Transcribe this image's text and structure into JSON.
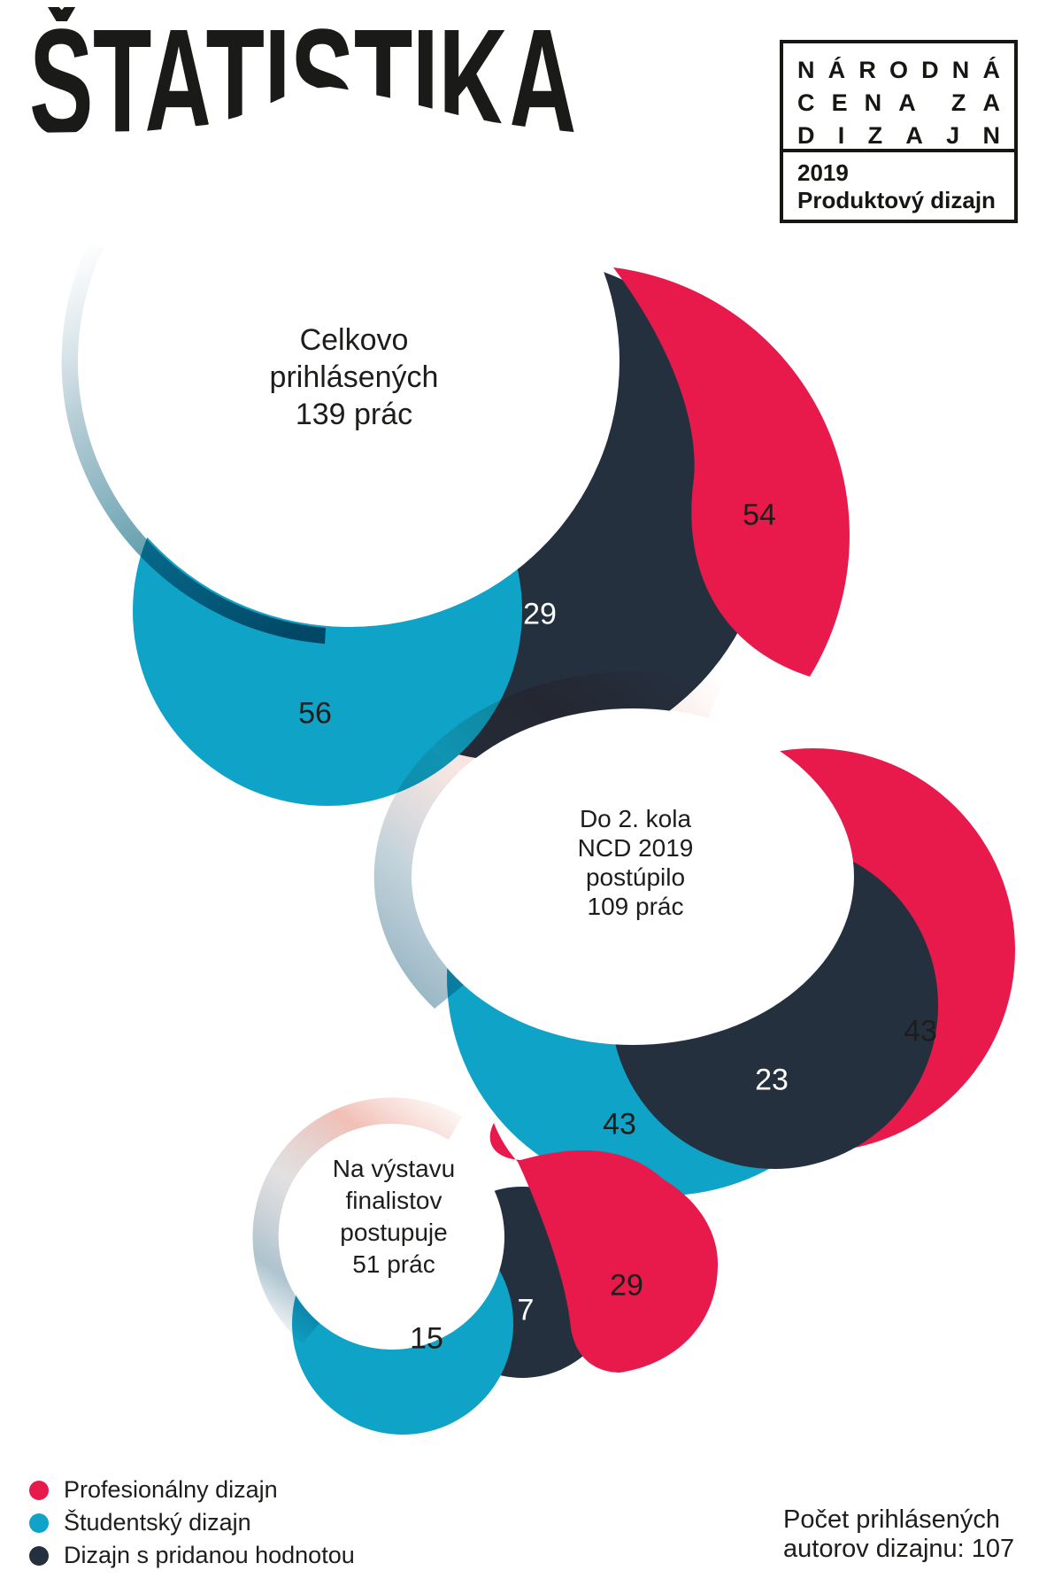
{
  "title": "ŠTATISTIKA",
  "logo": {
    "row1": "NÁRODNÁ",
    "row2": "CENA ZA",
    "row3": "DIZAJN",
    "year": "2019",
    "category": "Produktový dizajn"
  },
  "palette": {
    "red": "#E8194B",
    "teal": "#0FA3C7",
    "navy": "#25303F",
    "ink": "#1D1D1B",
    "trail_teal": "#0A6F82",
    "trail_pink": "#F2C4BA",
    "trail_gray": "#9FB9C6"
  },
  "chart_data": {
    "type": "bubble",
    "title": "ŠTATISTIKA",
    "legend_position": "bottom-left",
    "stages": [
      {
        "label": "Celkovo prihlásených 139 prác",
        "label_lines": [
          "Celkovo",
          "prihlásených",
          "139 prác"
        ],
        "total": 139,
        "series": [
          {
            "name": "Profesionálny dizajn",
            "value": 54,
            "color": "#E8194B"
          },
          {
            "name": "Dizajn s pridanou hodnotou",
            "value": 29,
            "color": "#25303F"
          },
          {
            "name": "Študentský dizajn",
            "value": 56,
            "color": "#0FA3C7"
          }
        ]
      },
      {
        "label": "Do 2. kola NCD 2019 postúpilo 109 prác",
        "label_lines": [
          "Do 2. kola",
          "NCD 2019",
          "postúpilo",
          "109 prác"
        ],
        "total": 109,
        "series": [
          {
            "name": "Profesionálny dizajn",
            "value": 43,
            "color": "#E8194B"
          },
          {
            "name": "Dizajn s pridanou hodnotou",
            "value": 23,
            "color": "#25303F"
          },
          {
            "name": "Študentský dizajn",
            "value": 43,
            "color": "#0FA3C7"
          }
        ]
      },
      {
        "label": "Na výstavu finalistov postupuje 51 prác",
        "label_lines": [
          "Na výstavu",
          "finalistov",
          "postupuje",
          "51 prác"
        ],
        "total": 51,
        "series": [
          {
            "name": "Profesionálny dizajn",
            "value": 29,
            "color": "#E8194B"
          },
          {
            "name": "Dizajn s pridanou hodnotou",
            "value": 7,
            "color": "#25303F"
          },
          {
            "name": "Študentský dizajn",
            "value": 15,
            "color": "#0FA3C7"
          }
        ]
      }
    ],
    "annotation": "Počet prihlásených autorov dizajnu: 107"
  },
  "legend": {
    "items": [
      {
        "label": "Profesionálny dizajn",
        "color": "#E8194B"
      },
      {
        "label": "Študentský dizajn",
        "color": "#0FA3C7"
      },
      {
        "label": "Dizajn s pridanou hodnotou",
        "color": "#25303F"
      }
    ]
  },
  "footer": {
    "line1": "Počet prihlásených",
    "line2": "autorov dizajnu: 107"
  }
}
